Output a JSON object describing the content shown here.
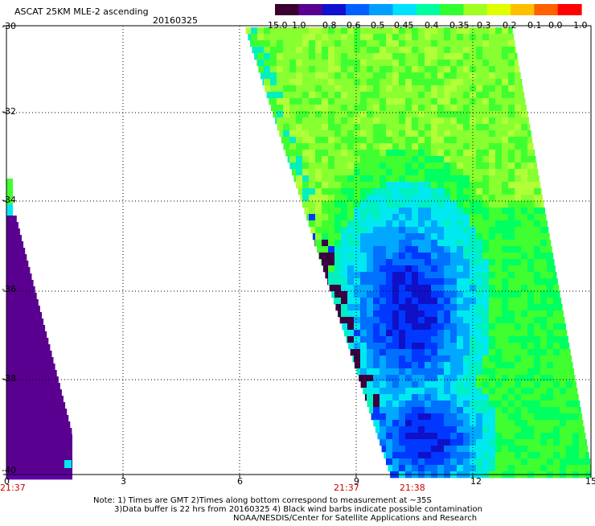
{
  "header": {
    "title": "ASCAT 25KM MLE-2 ascending",
    "date": "20160325"
  },
  "colorbar": {
    "labels": [
      "-15.0",
      "-1.0",
      "-0.8",
      "-0.6",
      "-0.5",
      "-0.45",
      "-0.4",
      "-0.35",
      "-0.3",
      "-0.2",
      "-0.1",
      "0.0",
      "1.0"
    ],
    "colors": [
      "#3a0030",
      "#5a0090",
      "#1010d0",
      "#0060ff",
      "#00a0ff",
      "#00e0ff",
      "#00ffa0",
      "#30ff30",
      "#a0ff20",
      "#e0ff00",
      "#ffc000",
      "#ff6000",
      "#ff0000"
    ]
  },
  "map": {
    "lat_ticks": [
      "-30",
      "-32",
      "-34",
      "-36",
      "-38",
      "-40"
    ],
    "lon_ticks": [
      "0",
      "3",
      "6",
      "9",
      "12",
      "15"
    ],
    "time_labels": [
      "21:37",
      "21:37",
      "21:38"
    ]
  },
  "notes": {
    "line1": "Note: 1) Times are GMT 2)Times along bottom correspond to measurement at ~35S",
    "line2": "3)Data buffer is 22 hrs from 20160325 4) Black wind barbs indicate possible contamination",
    "line3": "NOAA/NESDIS/Center for Satellite Applications and Research"
  }
}
